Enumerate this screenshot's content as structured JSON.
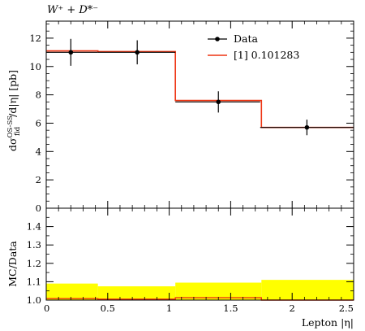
{
  "title": "W⁺ + D*⁻",
  "chart_data": [
    {
      "type": "line",
      "title": "W⁺ + D*⁻",
      "ylabel": "dσ_fid^(OS-SS)/d|η| [pb]",
      "xlim": [
        0,
        2.5
      ],
      "ylim": [
        0,
        13.2
      ],
      "yticks": [
        0,
        2,
        4,
        6,
        8,
        10,
        12
      ],
      "ytick_labels": [
        "0",
        "2",
        "4",
        "6",
        "8",
        "10",
        "12"
      ],
      "legend_position": "top-right",
      "series": [
        {
          "name": "Data",
          "style": "points-with-errorbars",
          "color": "#000000",
          "x": [
            0.2,
            0.74,
            1.4,
            2.12
          ],
          "xerr_low": [
            0.2,
            0.32,
            0.35,
            0.38
          ],
          "xerr_high": [
            0.22,
            0.31,
            0.34,
            0.38
          ],
          "y": [
            11.0,
            11.0,
            7.5,
            5.7
          ],
          "yerr": [
            0.95,
            0.85,
            0.75,
            0.55
          ]
        },
        {
          "name": "[1] 0.101283",
          "style": "step",
          "color": "#ee3311",
          "edges": [
            0,
            0.42,
            1.05,
            1.75,
            2.5
          ],
          "values": [
            11.1,
            11.05,
            7.6,
            5.7
          ]
        }
      ]
    },
    {
      "type": "line",
      "ylabel": "MC/Data",
      "xlabel": "Lepton |η|",
      "xlim": [
        0,
        2.5
      ],
      "ylim": [
        1.0,
        1.5
      ],
      "xticks": [
        0,
        0.5,
        1,
        1.5,
        2,
        2.5
      ],
      "xtick_labels": [
        "0",
        "0.5",
        "1",
        "1.5",
        "2",
        "2.5"
      ],
      "yticks": [
        1.0,
        1.1,
        1.2,
        1.3,
        1.4
      ],
      "ytick_labels": [
        "1.0",
        "1.1",
        "1.2",
        "1.3",
        "1.4"
      ],
      "uncertainty_band": {
        "color": "#ffff00",
        "edges": [
          0,
          0.42,
          1.05,
          1.75,
          2.5
        ],
        "low": [
          1.0,
          1.0,
          1.0,
          1.0
        ],
        "high": [
          1.09,
          1.075,
          1.095,
          1.11
        ]
      },
      "ratio_line": {
        "color": "#ee3311",
        "edges": [
          0,
          0.42,
          1.05,
          1.75,
          2.5
        ],
        "values": [
          1.008,
          1.005,
          1.013,
          1.0
        ]
      }
    }
  ]
}
